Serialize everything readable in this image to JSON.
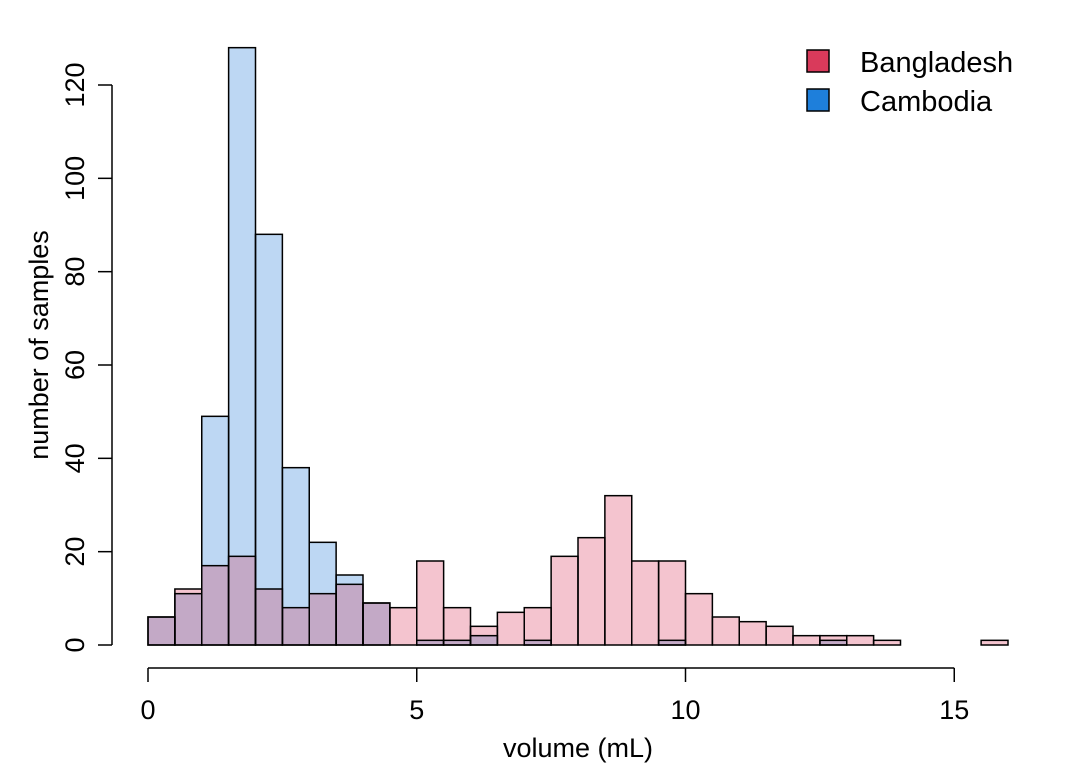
{
  "chart_data": {
    "type": "bar",
    "subtype": "overlaid-histogram",
    "title": "",
    "xlabel": "volume (mL)",
    "ylabel": "number of samples",
    "xlim": [
      0,
      16
    ],
    "ylim": [
      0,
      128
    ],
    "xticks": [
      0,
      5,
      10,
      15
    ],
    "yticks": [
      0,
      20,
      40,
      60,
      80,
      100,
      120
    ],
    "grid": false,
    "legend_position": "top-right",
    "bin_width": 0.5,
    "bin_starts": [
      0,
      0.5,
      1,
      1.5,
      2,
      2.5,
      3,
      3.5,
      4,
      4.5,
      5,
      5.5,
      6,
      6.5,
      7,
      7.5,
      8,
      8.5,
      9,
      9.5,
      10,
      10.5,
      11,
      11.5,
      12,
      12.5,
      13,
      13.5,
      14,
      14.5,
      15,
      15.5
    ],
    "series": [
      {
        "name": "Bangladesh",
        "legend_color": "#D93A5B",
        "fill": "#F4C4CF",
        "values": [
          6,
          12,
          17,
          19,
          12,
          8,
          11,
          13,
          9,
          8,
          18,
          8,
          4,
          7,
          8,
          19,
          23,
          32,
          18,
          18,
          11,
          6,
          5,
          4,
          2,
          2,
          2,
          1,
          0,
          0,
          0,
          1
        ]
      },
      {
        "name": "Cambodia",
        "legend_color": "#1E7FDB",
        "fill": "#BDD7F3",
        "values": [
          6,
          11,
          49,
          128,
          88,
          38,
          22,
          15,
          9,
          0,
          1,
          1,
          2,
          0,
          1,
          0,
          0,
          0,
          0,
          1,
          0,
          0,
          0,
          0,
          0,
          1,
          0,
          0,
          0,
          0,
          0,
          0
        ]
      }
    ],
    "overlap_fill": "#C3A9C6"
  }
}
